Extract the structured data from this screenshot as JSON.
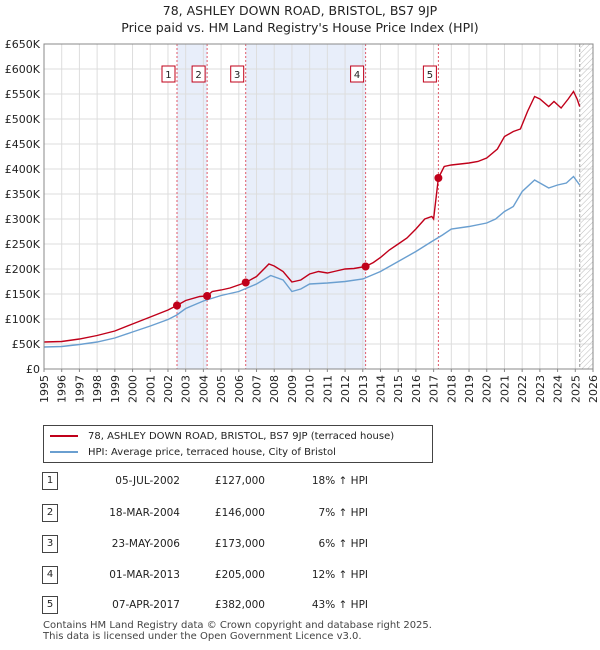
{
  "chart_data": {
    "type": "line",
    "title": "78, ASHLEY DOWN ROAD, BRISTOL, BS7 9JP",
    "subtitle": "Price paid vs. HM Land Registry's House Price Index (HPI)",
    "x_range": [
      1995,
      2026
    ],
    "ylim": [
      0,
      650000
    ],
    "grid": true,
    "y_ticks": [
      {
        "value": 0,
        "label": "£0"
      },
      {
        "value": 50000,
        "label": "£50K"
      },
      {
        "value": 100000,
        "label": "£100K"
      },
      {
        "value": 150000,
        "label": "£150K"
      },
      {
        "value": 200000,
        "label": "£200K"
      },
      {
        "value": 250000,
        "label": "£250K"
      },
      {
        "value": 300000,
        "label": "£300K"
      },
      {
        "value": 350000,
        "label": "£350K"
      },
      {
        "value": 400000,
        "label": "£400K"
      },
      {
        "value": 450000,
        "label": "£450K"
      },
      {
        "value": 500000,
        "label": "£500K"
      },
      {
        "value": 550000,
        "label": "£550K"
      },
      {
        "value": 600000,
        "label": "£600K"
      },
      {
        "value": 650000,
        "label": "£650K"
      }
    ],
    "x_ticks": [
      "1995",
      "1996",
      "1997",
      "1998",
      "1999",
      "2000",
      "2001",
      "2002",
      "2003",
      "2004",
      "2005",
      "2006",
      "2007",
      "2008",
      "2009",
      "2010",
      "2011",
      "2012",
      "2013",
      "2014",
      "2015",
      "2016",
      "2017",
      "2018",
      "2019",
      "2020",
      "2021",
      "2022",
      "2023",
      "2024",
      "2025",
      "2026"
    ],
    "data_end": 2025.25,
    "series": [
      {
        "name": "78, ASHLEY DOWN ROAD, BRISTOL, BS7 9JP (terraced house)",
        "color": "#c0001a",
        "points": [
          [
            1995.0,
            54000
          ],
          [
            1996.0,
            55000
          ],
          [
            1997.0,
            60000
          ],
          [
            1998.0,
            67000
          ],
          [
            1999.0,
            76000
          ],
          [
            2000.0,
            90000
          ],
          [
            2001.0,
            104000
          ],
          [
            2002.0,
            118000
          ],
          [
            2002.5,
            127000
          ],
          [
            2003.0,
            137000
          ],
          [
            2003.8,
            145000
          ],
          [
            2004.21,
            146000
          ],
          [
            2004.5,
            155000
          ],
          [
            2005.0,
            158000
          ],
          [
            2005.5,
            162000
          ],
          [
            2006.39,
            173000
          ],
          [
            2007.0,
            185000
          ],
          [
            2007.7,
            210000
          ],
          [
            2008.0,
            206000
          ],
          [
            2008.5,
            195000
          ],
          [
            2009.0,
            174000
          ],
          [
            2009.5,
            178000
          ],
          [
            2010.0,
            190000
          ],
          [
            2010.5,
            195000
          ],
          [
            2011.0,
            192000
          ],
          [
            2011.5,
            196000
          ],
          [
            2012.0,
            200000
          ],
          [
            2012.5,
            201000
          ],
          [
            2013.16,
            205000
          ],
          [
            2013.6,
            213000
          ],
          [
            2014.0,
            223000
          ],
          [
            2014.5,
            238000
          ],
          [
            2015.0,
            250000
          ],
          [
            2015.5,
            262000
          ],
          [
            2016.0,
            280000
          ],
          [
            2016.5,
            300000
          ],
          [
            2016.9,
            305000
          ],
          [
            2017.0,
            300000
          ],
          [
            2017.27,
            382000
          ],
          [
            2017.6,
            405000
          ],
          [
            2018.0,
            408000
          ],
          [
            2018.5,
            410000
          ],
          [
            2019.0,
            412000
          ],
          [
            2019.5,
            415000
          ],
          [
            2020.0,
            422000
          ],
          [
            2020.6,
            440000
          ],
          [
            2021.0,
            465000
          ],
          [
            2021.5,
            475000
          ],
          [
            2021.9,
            480000
          ],
          [
            2022.3,
            515000
          ],
          [
            2022.7,
            545000
          ],
          [
            2023.0,
            540000
          ],
          [
            2023.5,
            525000
          ],
          [
            2023.8,
            535000
          ],
          [
            2024.2,
            522000
          ],
          [
            2024.6,
            540000
          ],
          [
            2024.9,
            555000
          ],
          [
            2025.1,
            540000
          ],
          [
            2025.25,
            525000
          ]
        ]
      },
      {
        "name": "HPI: Average price, terraced house, City of Bristol",
        "color": "#6a9fd0",
        "points": [
          [
            1995.0,
            44000
          ],
          [
            1996.0,
            45000
          ],
          [
            1997.0,
            49000
          ],
          [
            1998.0,
            54000
          ],
          [
            1999.0,
            62000
          ],
          [
            2000.0,
            74000
          ],
          [
            2001.0,
            86000
          ],
          [
            2002.0,
            99000
          ],
          [
            2002.5,
            108000
          ],
          [
            2003.0,
            121000
          ],
          [
            2004.0,
            136000
          ],
          [
            2005.0,
            147000
          ],
          [
            2006.0,
            155000
          ],
          [
            2007.0,
            170000
          ],
          [
            2007.8,
            187000
          ],
          [
            2008.5,
            178000
          ],
          [
            2009.0,
            155000
          ],
          [
            2009.5,
            160000
          ],
          [
            2010.0,
            170000
          ],
          [
            2011.0,
            172000
          ],
          [
            2012.0,
            175000
          ],
          [
            2013.0,
            180000
          ],
          [
            2014.0,
            195000
          ],
          [
            2015.0,
            215000
          ],
          [
            2016.0,
            235000
          ],
          [
            2016.9,
            255000
          ],
          [
            2017.5,
            268000
          ],
          [
            2018.0,
            280000
          ],
          [
            2019.0,
            285000
          ],
          [
            2020.0,
            292000
          ],
          [
            2020.5,
            300000
          ],
          [
            2021.0,
            315000
          ],
          [
            2021.5,
            325000
          ],
          [
            2022.0,
            355000
          ],
          [
            2022.7,
            378000
          ],
          [
            2023.0,
            372000
          ],
          [
            2023.5,
            362000
          ],
          [
            2024.0,
            368000
          ],
          [
            2024.5,
            372000
          ],
          [
            2024.9,
            385000
          ],
          [
            2025.25,
            368000
          ]
        ]
      }
    ],
    "sales": [
      {
        "num": "1",
        "date": "05-JUL-2002",
        "price": "£127,000",
        "pct": "18% ↑ HPI",
        "x": 2002.51,
        "y": 127000
      },
      {
        "num": "2",
        "date": "18-MAR-2004",
        "price": "£146,000",
        "pct": "7% ↑ HPI",
        "x": 2004.21,
        "y": 146000
      },
      {
        "num": "3",
        "date": "23-MAY-2006",
        "price": "£173,000",
        "pct": "6% ↑ HPI",
        "x": 2006.39,
        "y": 173000
      },
      {
        "num": "4",
        "date": "01-MAR-2013",
        "price": "£205,000",
        "pct": "12% ↑ HPI",
        "x": 2013.16,
        "y": 205000
      },
      {
        "num": "5",
        "date": "07-APR-2017",
        "price": "£382,000",
        "pct": "43% ↑ HPI",
        "x": 2017.27,
        "y": 382000
      }
    ]
  },
  "legend": {
    "property_label": "78, ASHLEY DOWN ROAD, BRISTOL, BS7 9JP (terraced house)",
    "hpi_label": "HPI: Average price, terraced house, City of Bristol"
  },
  "footer": {
    "line1": "Contains HM Land Registry data © Crown copyright and database right 2025.",
    "line2": "This data is licensed under the Open Government Licence v3.0."
  }
}
